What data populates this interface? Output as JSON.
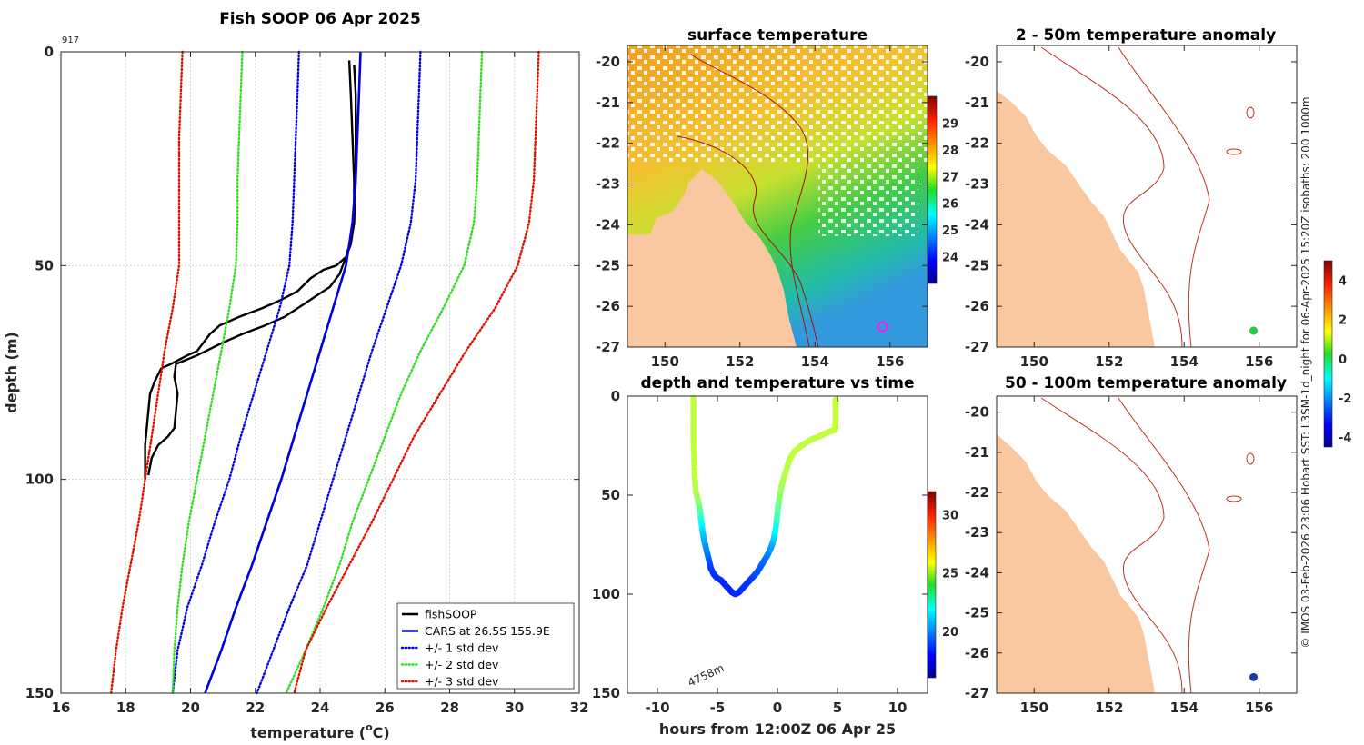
{
  "figure": {
    "credit": "© IMOS 03-Feb-2026 23:06 Hobart SST: L3SM-1d_night for 06-Apr-2025 15:20Z isobaths: 200  1000m"
  },
  "chart_data": [
    {
      "id": "profile",
      "type": "line",
      "title": "Fish SOOP 06 Apr 2025",
      "annotation": "917",
      "xlabel": "temperature (",
      "xlabel_sup": "o",
      "xlabel_end": "C)",
      "ylabel": "depth (m)",
      "xlim": [
        16,
        32
      ],
      "ylim": [
        0,
        150
      ],
      "y_reversed": true,
      "xticks": [
        16,
        18,
        20,
        22,
        24,
        26,
        28,
        30,
        32
      ],
      "yticks": [
        0,
        50,
        100,
        150
      ],
      "grid": true,
      "legend": {
        "position": "bottom-right",
        "entries": [
          {
            "label": "fishSOOP",
            "color": "#000000",
            "style": "solid"
          },
          {
            "label": "CARS at 26.5S 155.9E",
            "color": "#0000dd",
            "style": "solid"
          },
          {
            "label": "+/- 1 std dev",
            "color": "#0000dd",
            "style": "dotted"
          },
          {
            "label": "+/- 2 std dev",
            "color": "#33dd22",
            "style": "dotted"
          },
          {
            "label": "+/- 3 std dev",
            "color": "#dd1100",
            "style": "dotted"
          }
        ]
      },
      "series": [
        {
          "name": "fishSOOP descent",
          "color": "#000000",
          "style": "solid",
          "width": 2.4,
          "points": [
            [
              24.9,
              2
            ],
            [
              24.95,
              10
            ],
            [
              25.0,
              20
            ],
            [
              25.05,
              30
            ],
            [
              25.05,
              40
            ],
            [
              24.95,
              44
            ],
            [
              24.8,
              48
            ],
            [
              24.5,
              50
            ],
            [
              24.1,
              51
            ],
            [
              23.7,
              53
            ],
            [
              23.3,
              56
            ],
            [
              22.8,
              58
            ],
            [
              22.2,
              60
            ],
            [
              21.5,
              62
            ],
            [
              20.9,
              64
            ],
            [
              20.6,
              66
            ],
            [
              20.4,
              68
            ],
            [
              20.2,
              70
            ],
            [
              19.9,
              71
            ],
            [
              19.4,
              73
            ],
            [
              19.1,
              74
            ],
            [
              18.9,
              77
            ],
            [
              18.75,
              80
            ],
            [
              18.7,
              84
            ],
            [
              18.65,
              88
            ],
            [
              18.6,
              92
            ],
            [
              18.6,
              96
            ],
            [
              18.6,
              100
            ]
          ]
        },
        {
          "name": "fishSOOP ascent",
          "color": "#000000",
          "style": "solid",
          "width": 2.4,
          "points": [
            [
              18.7,
              99
            ],
            [
              18.75,
              97
            ],
            [
              18.8,
              95
            ],
            [
              19.0,
              92
            ],
            [
              19.3,
              90
            ],
            [
              19.5,
              88
            ],
            [
              19.55,
              84
            ],
            [
              19.6,
              80
            ],
            [
              19.5,
              76
            ],
            [
              19.55,
              73
            ],
            [
              20.2,
              71
            ],
            [
              21.0,
              68
            ],
            [
              21.6,
              66
            ],
            [
              22.3,
              64
            ],
            [
              22.9,
              62
            ],
            [
              23.5,
              59
            ],
            [
              23.9,
              57
            ],
            [
              24.3,
              55
            ],
            [
              24.6,
              52
            ],
            [
              24.8,
              48
            ],
            [
              24.95,
              45
            ],
            [
              25.05,
              40
            ],
            [
              25.1,
              30
            ],
            [
              25.1,
              20
            ],
            [
              25.1,
              10
            ],
            [
              25.05,
              3
            ]
          ]
        },
        {
          "name": "CARS mean",
          "color": "#0000dd",
          "style": "solid",
          "width": 2.6,
          "points": [
            [
              25.25,
              0
            ],
            [
              25.2,
              10
            ],
            [
              25.15,
              20
            ],
            [
              25.1,
              30
            ],
            [
              25.0,
              40
            ],
            [
              24.8,
              50
            ],
            [
              24.4,
              60
            ],
            [
              24.0,
              70
            ],
            [
              23.6,
              80
            ],
            [
              23.2,
              90
            ],
            [
              22.8,
              100
            ],
            [
              22.35,
              110
            ],
            [
              21.9,
              120
            ],
            [
              21.4,
              130
            ],
            [
              20.95,
              140
            ],
            [
              20.45,
              150
            ]
          ]
        },
        {
          "name": "+1 std dev",
          "color": "#0000dd",
          "style": "dotted",
          "width": 2.4,
          "points": [
            [
              27.1,
              0
            ],
            [
              27.05,
              10
            ],
            [
              27.0,
              20
            ],
            [
              26.95,
              30
            ],
            [
              26.8,
              40
            ],
            [
              26.5,
              50
            ],
            [
              26.05,
              60
            ],
            [
              25.6,
              70
            ],
            [
              25.2,
              80
            ],
            [
              24.8,
              90
            ],
            [
              24.4,
              100
            ],
            [
              24.0,
              110
            ],
            [
              23.6,
              120
            ],
            [
              23.05,
              130
            ],
            [
              22.55,
              140
            ],
            [
              22.05,
              150
            ]
          ]
        },
        {
          "name": "-1 std dev",
          "color": "#0000dd",
          "style": "dotted",
          "width": 2.4,
          "points": [
            [
              23.35,
              0
            ],
            [
              23.3,
              10
            ],
            [
              23.25,
              20
            ],
            [
              23.2,
              30
            ],
            [
              23.15,
              40
            ],
            [
              23.05,
              50
            ],
            [
              22.75,
              60
            ],
            [
              22.35,
              70
            ],
            [
              21.95,
              80
            ],
            [
              21.55,
              90
            ],
            [
              21.2,
              100
            ],
            [
              20.75,
              110
            ],
            [
              20.35,
              120
            ],
            [
              19.9,
              130
            ],
            [
              19.6,
              140
            ],
            [
              19.45,
              150
            ]
          ]
        },
        {
          "name": "+2 std dev",
          "color": "#33dd22",
          "style": "dotted",
          "width": 2.4,
          "points": [
            [
              29.0,
              0
            ],
            [
              28.95,
              10
            ],
            [
              28.9,
              20
            ],
            [
              28.85,
              30
            ],
            [
              28.75,
              40
            ],
            [
              28.45,
              50
            ],
            [
              27.8,
              60
            ],
            [
              27.1,
              70
            ],
            [
              26.5,
              80
            ],
            [
              26.0,
              90
            ],
            [
              25.5,
              100
            ],
            [
              25.0,
              110
            ],
            [
              24.6,
              120
            ],
            [
              24.1,
              130
            ],
            [
              23.55,
              140
            ],
            [
              22.95,
              150
            ]
          ]
        },
        {
          "name": "-2 std dev",
          "color": "#33dd22",
          "style": "dotted",
          "width": 2.4,
          "points": [
            [
              21.6,
              0
            ],
            [
              21.55,
              10
            ],
            [
              21.5,
              20
            ],
            [
              21.45,
              30
            ],
            [
              21.45,
              40
            ],
            [
              21.4,
              50
            ],
            [
              21.2,
              60
            ],
            [
              20.95,
              70
            ],
            [
              20.7,
              80
            ],
            [
              20.45,
              90
            ],
            [
              20.2,
              100
            ],
            [
              19.95,
              110
            ],
            [
              19.75,
              120
            ],
            [
              19.6,
              130
            ],
            [
              19.5,
              140
            ],
            [
              19.45,
              150
            ]
          ]
        },
        {
          "name": "+3 std dev",
          "color": "#dd1100",
          "style": "dotted",
          "width": 2.4,
          "points": [
            [
              30.75,
              0
            ],
            [
              30.7,
              10
            ],
            [
              30.65,
              20
            ],
            [
              30.6,
              30
            ],
            [
              30.45,
              40
            ],
            [
              30.1,
              50
            ],
            [
              29.4,
              60
            ],
            [
              28.5,
              70
            ],
            [
              27.7,
              80
            ],
            [
              26.9,
              90
            ],
            [
              26.25,
              100
            ],
            [
              25.6,
              110
            ],
            [
              24.9,
              120
            ],
            [
              24.2,
              130
            ],
            [
              23.55,
              140
            ],
            [
              23.2,
              150
            ]
          ]
        },
        {
          "name": "-3 std dev",
          "color": "#dd1100",
          "style": "dotted",
          "width": 2.4,
          "points": [
            [
              19.75,
              0
            ],
            [
              19.7,
              10
            ],
            [
              19.65,
              20
            ],
            [
              19.65,
              30
            ],
            [
              19.65,
              40
            ],
            [
              19.65,
              50
            ],
            [
              19.45,
              60
            ],
            [
              19.2,
              70
            ],
            [
              19.0,
              80
            ],
            [
              18.8,
              90
            ],
            [
              18.6,
              100
            ],
            [
              18.4,
              110
            ],
            [
              18.15,
              120
            ],
            [
              17.9,
              130
            ],
            [
              17.7,
              140
            ],
            [
              17.55,
              150
            ]
          ]
        }
      ]
    },
    {
      "id": "sst",
      "type": "heatmap",
      "title": "surface temperature",
      "xlim": [
        149,
        157
      ],
      "ylim": [
        -27,
        -19.6
      ],
      "xticks": [
        150,
        152,
        154,
        156
      ],
      "yticks": [
        -20,
        -21,
        -22,
        -23,
        -24,
        -25,
        -26,
        -27
      ],
      "colorbar": {
        "min": 23,
        "max": 30,
        "ticks": [
          24,
          25,
          26,
          27,
          28,
          29
        ]
      },
      "marker": {
        "lon": 155.8,
        "lat": -26.5,
        "color": "#ee22ee",
        "shape": "circle"
      }
    },
    {
      "id": "depth_time",
      "type": "scatter",
      "title": "depth and temperature vs time",
      "xlabel": "hours from 12:00Z 06 Apr 25",
      "xlim": [
        -12.5,
        12.5
      ],
      "ylim": [
        0,
        150
      ],
      "y_reversed": true,
      "xticks": [
        -10,
        -5,
        0,
        5,
        10
      ],
      "yticks": [
        0,
        50,
        100,
        150
      ],
      "annotation": "4758m",
      "colorbar": {
        "min": 16,
        "max": 32,
        "ticks": [
          20,
          25,
          30
        ]
      },
      "points": [
        [
          -7,
          1,
          25
        ],
        [
          -7,
          10,
          25
        ],
        [
          -7,
          20,
          25
        ],
        [
          -6.95,
          30,
          25
        ],
        [
          -6.9,
          40,
          25
        ],
        [
          -6.8,
          48,
          24.8
        ],
        [
          -6.6,
          53,
          24.4
        ],
        [
          -6.45,
          58,
          23.5
        ],
        [
          -6.35,
          63,
          22.5
        ],
        [
          -6.25,
          68,
          21.5
        ],
        [
          -6.1,
          73,
          20.8
        ],
        [
          -5.9,
          78,
          20.2
        ],
        [
          -5.7,
          83,
          19.5
        ],
        [
          -5.55,
          87,
          19.0
        ],
        [
          -5.3,
          90,
          18.8
        ],
        [
          -5.0,
          92,
          18.7
        ],
        [
          -4.7,
          93,
          18.7
        ],
        [
          -4.4,
          95,
          18.6
        ],
        [
          -4.1,
          97,
          18.6
        ],
        [
          -3.8,
          99,
          18.6
        ],
        [
          -3.5,
          100,
          18.6
        ],
        [
          -3.2,
          99,
          18.6
        ],
        [
          -2.9,
          97,
          18.7
        ],
        [
          -2.6,
          95,
          18.8
        ],
        [
          -2.3,
          93,
          18.8
        ],
        [
          -2.0,
          91,
          19.0
        ],
        [
          -1.7,
          89,
          19.2
        ],
        [
          -1.4,
          86,
          19.4
        ],
        [
          -1.1,
          83,
          19.6
        ],
        [
          -0.8,
          80,
          19.9
        ],
        [
          -0.5,
          76,
          20.5
        ],
        [
          -0.3,
          72,
          21.2
        ],
        [
          -0.15,
          67,
          22.0
        ],
        [
          -0.05,
          62,
          22.8
        ],
        [
          0.05,
          56,
          23.6
        ],
        [
          0.2,
          50,
          24.2
        ],
        [
          0.4,
          44,
          24.7
        ],
        [
          0.7,
          38,
          24.9
        ],
        [
          1.0,
          32,
          25.0
        ],
        [
          1.4,
          28,
          25.0
        ],
        [
          2.0,
          25,
          25.0
        ],
        [
          2.8,
          22,
          25.0
        ],
        [
          3.6,
          20,
          25.0
        ],
        [
          4.3,
          18,
          25.0
        ],
        [
          4.8,
          17,
          25.1
        ],
        [
          4.85,
          12,
          25.1
        ],
        [
          4.85,
          6,
          25.1
        ],
        [
          4.85,
          1,
          25.1
        ]
      ]
    },
    {
      "id": "anom_2_50",
      "type": "heatmap",
      "title": "2 - 50m temperature anomaly",
      "xlim": [
        149,
        157
      ],
      "ylim": [
        -27,
        -19.6
      ],
      "xticks": [
        150,
        152,
        154,
        156
      ],
      "yticks": [
        -20,
        -21,
        -22,
        -23,
        -24,
        -25,
        -26,
        -27
      ],
      "marker": {
        "lon": 155.85,
        "lat": -26.6,
        "value": 0.3,
        "color": "#22cc44"
      }
    },
    {
      "id": "anom_50_100",
      "type": "heatmap",
      "title": "50 - 100m temperature anomaly",
      "xlim": [
        149,
        157
      ],
      "ylim": [
        -27,
        -19.6
      ],
      "xticks": [
        150,
        152,
        154,
        156
      ],
      "yticks": [
        -20,
        -21,
        -22,
        -23,
        -24,
        -25,
        -26,
        -27
      ],
      "marker": {
        "lon": 155.85,
        "lat": -26.6,
        "value": -3.7,
        "color": "#1a3aaa"
      }
    },
    {
      "id": "anom_colorbar",
      "type": "heatmap",
      "colorbar": {
        "min": -4.5,
        "max": 5,
        "ticks": [
          -4,
          -2,
          0,
          2,
          4
        ]
      }
    }
  ]
}
